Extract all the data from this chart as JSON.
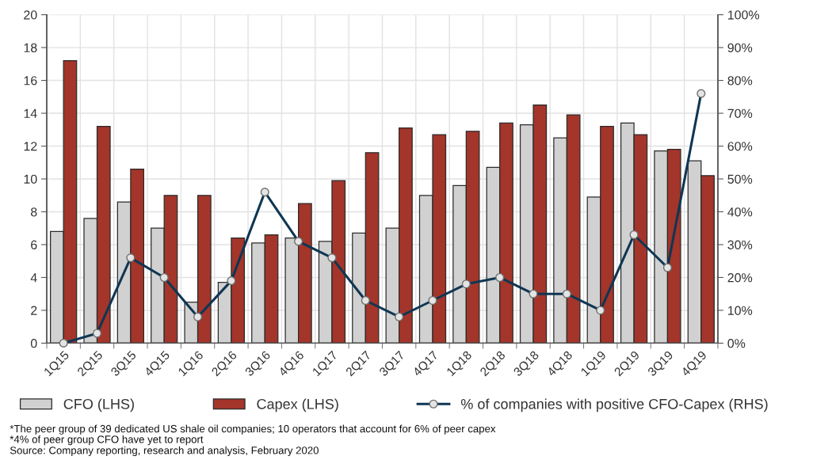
{
  "chart_data": {
    "type": "bar",
    "categories": [
      "1Q15",
      "2Q15",
      "3Q15",
      "4Q15",
      "1Q16",
      "2Q16",
      "3Q16",
      "4Q16",
      "1Q17",
      "2Q17",
      "3Q17",
      "4Q17",
      "1Q18",
      "2Q18",
      "3Q18",
      "4Q18",
      "1Q19",
      "2Q19",
      "3Q19",
      "4Q19"
    ],
    "series": [
      {
        "name": "CFO (LHS)",
        "color": "#d1d1d1",
        "values": [
          6.8,
          7.6,
          8.6,
          7.0,
          2.5,
          3.7,
          6.1,
          6.4,
          6.2,
          6.7,
          7.0,
          9.0,
          9.6,
          10.7,
          13.3,
          12.5,
          8.9,
          13.4,
          11.7,
          11.1
        ]
      },
      {
        "name": "Capex (LHS)",
        "color": "#a3352a",
        "values": [
          17.2,
          13.2,
          10.6,
          9.0,
          9.0,
          6.4,
          6.6,
          8.5,
          9.9,
          11.6,
          13.1,
          12.7,
          12.9,
          13.4,
          14.5,
          13.9,
          13.2,
          12.7,
          11.8,
          10.2
        ]
      },
      {
        "name": "% of companies with positive CFO-Capex (RHS)",
        "type": "line",
        "axis": "y2",
        "color": "#0f3653",
        "marker": "circle",
        "values": [
          0,
          3,
          26,
          20,
          8,
          19,
          46,
          31,
          26,
          13,
          8,
          13,
          18,
          20,
          15,
          15,
          10,
          33,
          23,
          76
        ]
      }
    ],
    "ylim": [
      0,
      20
    ],
    "yticks": [
      0,
      2,
      4,
      6,
      8,
      10,
      12,
      14,
      16,
      18,
      20
    ],
    "y2lim": [
      0,
      100
    ],
    "y2ticks": [
      {
        "value": 0,
        "label": "0%"
      },
      {
        "value": 10,
        "label": "10%"
      },
      {
        "value": 20,
        "label": "20%"
      },
      {
        "value": 30,
        "label": "30%"
      },
      {
        "value": 40,
        "label": "40%"
      },
      {
        "value": 50,
        "label": "50%"
      },
      {
        "value": 60,
        "label": "60%"
      },
      {
        "value": 70,
        "label": "70%"
      },
      {
        "value": 80,
        "label": "80%"
      },
      {
        "value": 90,
        "label": "90%"
      },
      {
        "value": 100,
        "label": "100%"
      }
    ],
    "grid": true,
    "legend": "bottom",
    "annotations": [
      "*The peer group of 39 dedicated US shale oil companies; 10 operators that account for 6% of peer capex",
      "*4% of peer group CFO have yet to report",
      "Source: Company reporting, research and analysis, February 2020"
    ]
  }
}
